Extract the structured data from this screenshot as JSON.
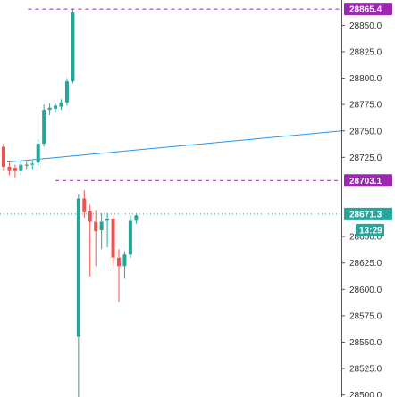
{
  "chart_data": {
    "type": "candlestick",
    "y_ticks": [
      {
        "value": 28850,
        "label": "28850.0"
      },
      {
        "value": 28825,
        "label": "28825.0"
      },
      {
        "value": 28800,
        "label": "28800.0"
      },
      {
        "value": 28775,
        "label": "28775.0"
      },
      {
        "value": 28750,
        "label": "28750.0"
      },
      {
        "value": 28725,
        "label": "28725.0"
      },
      {
        "value": 28650,
        "label": "28650.0"
      },
      {
        "value": 28625,
        "label": "28625.0"
      },
      {
        "value": 28600,
        "label": "28600.0"
      },
      {
        "value": 28575,
        "label": "28575.0"
      },
      {
        "value": 28550,
        "label": "28550.0"
      },
      {
        "value": 28525,
        "label": "28525.0"
      },
      {
        "value": 28500,
        "label": "28500.0"
      }
    ],
    "ylim": [
      28498,
      28874
    ],
    "bar_spacing": 6.45,
    "candles": [
      {
        "o": 28735,
        "h": 28738,
        "l": 28712,
        "c": 28716
      },
      {
        "o": 28716,
        "h": 28720,
        "l": 28708,
        "c": 28712
      },
      {
        "o": 28715,
        "h": 28718,
        "l": 28706,
        "c": 28712
      },
      {
        "o": 28712,
        "h": 28721,
        "l": 28708,
        "c": 28718
      },
      {
        "o": 28717,
        "h": 28721,
        "l": 28714,
        "c": 28718
      },
      {
        "o": 28718,
        "h": 28722,
        "l": 28714,
        "c": 28719
      },
      {
        "o": 28720,
        "h": 28742,
        "l": 28717,
        "c": 28738
      },
      {
        "o": 28738,
        "h": 28775,
        "l": 28735,
        "c": 28770
      },
      {
        "o": 28770,
        "h": 28776,
        "l": 28765,
        "c": 28772
      },
      {
        "o": 28771,
        "h": 28776,
        "l": 28768,
        "c": 28774
      },
      {
        "o": 28773,
        "h": 28780,
        "l": 28770,
        "c": 28777
      },
      {
        "o": 28777,
        "h": 28800,
        "l": 28774,
        "c": 28797
      },
      {
        "o": 28797,
        "h": 28865.4,
        "l": 28795,
        "c": 28862
      },
      {
        "o": 28555,
        "h": 28690,
        "l": 28490,
        "c": 28686
      },
      {
        "o": 28686,
        "h": 28694,
        "l": 28668,
        "c": 28673
      },
      {
        "o": 28674,
        "h": 28680,
        "l": 28612,
        "c": 28664
      },
      {
        "o": 28664,
        "h": 28675,
        "l": 28622,
        "c": 28655
      },
      {
        "o": 28656,
        "h": 28672,
        "l": 28638,
        "c": 28664
      },
      {
        "o": 28665,
        "h": 28672,
        "l": 28640,
        "c": 28667
      },
      {
        "o": 28667,
        "h": 28670,
        "l": 28622,
        "c": 28630
      },
      {
        "o": 28630,
        "h": 28638,
        "l": 28588,
        "c": 28622
      },
      {
        "o": 28622,
        "h": 28636,
        "l": 28610,
        "c": 28633
      },
      {
        "o": 28633,
        "h": 28670,
        "l": 28630,
        "c": 28665
      },
      {
        "o": 28665,
        "h": 28672,
        "l": 28662,
        "c": 28670
      }
    ],
    "trendline": {
      "y_start": 28720.5,
      "y_end": 28750
    },
    "levels": [
      {
        "value": 28865.4,
        "label": "28865.4",
        "color": "#9c27b0",
        "style": "dashed"
      },
      {
        "value": 28703.1,
        "label": "28703.1",
        "color": "#9c27b0",
        "style": "dashed"
      },
      {
        "value": 28671.3,
        "label": "28671.3",
        "color": "#26a69a",
        "style": "dotted",
        "extra_label": "13:29"
      }
    ],
    "colors": {
      "up": "#26a69a",
      "down": "#ef5350",
      "trendline": "#2196f3",
      "level_purple": "#9c27b0",
      "current_price": "#26a69a",
      "axis": "#555555"
    }
  }
}
